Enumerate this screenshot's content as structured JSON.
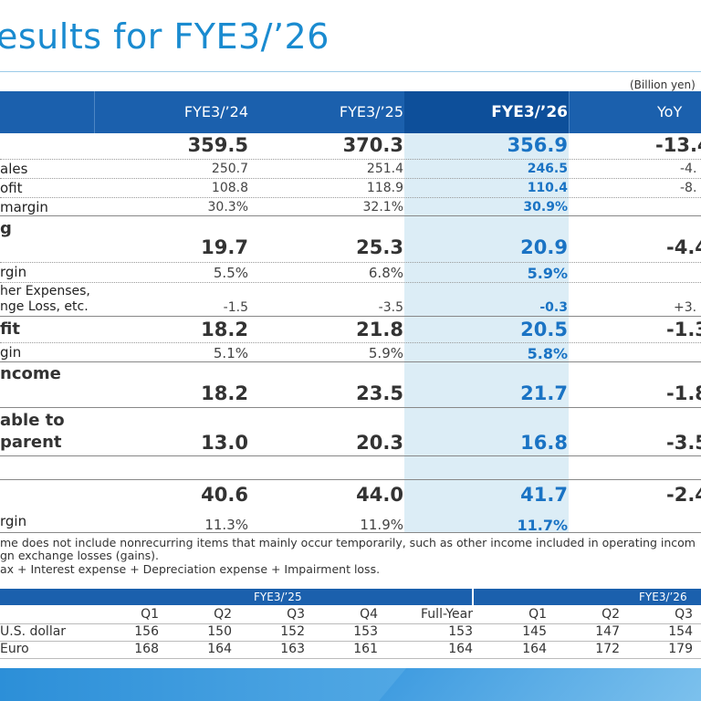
{
  "title": "esults for FYE3/’26",
  "unit": "(Billion yen)",
  "header": {
    "col1": "FYE3/’24",
    "col2": "FYE3/’25",
    "col3": "FYE3/’26",
    "col4": "YoY"
  },
  "rows": {
    "net_sales": {
      "v1": "359.5",
      "v2": "370.3",
      "v3": "356.9",
      "v4": "-13.4"
    },
    "cost_of_sales": {
      "label": "ales",
      "v1": "250.7",
      "v2": "251.4",
      "v3": "246.5",
      "v4": "-4."
    },
    "gross_profit": {
      "label": "ofit",
      "v1": "108.8",
      "v2": "118.9",
      "v3": "110.4",
      "v4": "-8."
    },
    "gross_margin": {
      "label": "margin",
      "v1": "30.3%",
      "v2": "32.1%",
      "v3": "30.9%"
    },
    "operating_income": {
      "label": "g",
      "v1": "19.7",
      "v2": "25.3",
      "v3": "20.9",
      "v4": "-4.4"
    },
    "operating_margin": {
      "label": "rgin",
      "v1": "5.5%",
      "v2": "6.8%",
      "v3": "5.9%"
    },
    "other_expenses": {
      "label1": "her Expenses,",
      "label2": "nge Loss, etc.",
      "v1": "-1.5",
      "v2": "-3.5",
      "v3": "-0.3",
      "v4": "+3."
    },
    "business_profit": {
      "label": "fit",
      "v1": "18.2",
      "v2": "21.8",
      "v3": "20.5",
      "v4": "-1.3"
    },
    "business_margin": {
      "label": "gin",
      "v1": "5.1%",
      "v2": "5.9%",
      "v3": "5.8%"
    },
    "pretax_income": {
      "label": "ncome",
      "v1": "18.2",
      "v2": "23.5",
      "v3": "21.7",
      "v4": "-1.8"
    },
    "net_income": {
      "label1": "able to",
      "label2": "parent",
      "v1": "13.0",
      "v2": "20.3",
      "v3": "16.8",
      "v4": "-3.5"
    },
    "ebitda": {
      "v1": "40.6",
      "v2": "44.0",
      "v3": "41.7",
      "v4": "-2.4"
    },
    "ebitda_margin": {
      "label": "rgin",
      "v1": "11.3%",
      "v2": "11.9%",
      "v3": "11.7%"
    }
  },
  "notes": {
    "line1": "me does not include nonrecurring items that mainly occur temporarily, such as other income included in operating incom",
    "line2": "gn exchange losses (gains).",
    "line3": "ax + Interest expense + Depreciation expense + Impairment loss."
  },
  "fx": {
    "group1": "FYE3/’25",
    "group2": "FYE3/’26",
    "columns": [
      "Q1",
      "Q2",
      "Q3",
      "Q4",
      "Full-Year",
      "Q1",
      "Q2",
      "Q3"
    ],
    "usd": {
      "label": "U.S. dollar",
      "values": [
        "156",
        "150",
        "152",
        "153",
        "153",
        "145",
        "147",
        "154"
      ]
    },
    "eur": {
      "label": "Euro",
      "values": [
        "168",
        "164",
        "163",
        "161",
        "164",
        "164",
        "172",
        "179"
      ]
    }
  }
}
